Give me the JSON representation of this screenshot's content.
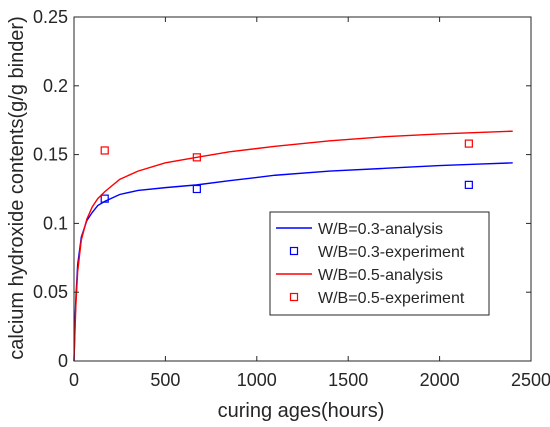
{
  "chart_data": {
    "type": "line",
    "xlabel": "curing ages(hours)",
    "ylabel": "calcium hydroxide contents(g/g binder)",
    "xlim": [
      0,
      2500
    ],
    "ylim": [
      0,
      0.25
    ],
    "xticks": [
      0,
      500,
      1000,
      1500,
      2000,
      2500
    ],
    "yticks": [
      0,
      0.05,
      0.1,
      0.15,
      0.2,
      0.25
    ],
    "xtick_labels": [
      "0",
      "500",
      "1000",
      "1500",
      "2000",
      "2500"
    ],
    "ytick_labels": [
      "0",
      "0.05",
      "0.1",
      "0.15",
      "0.2",
      "0.25"
    ],
    "grid": false,
    "legend_position": "lower-right",
    "series": [
      {
        "name": "W/B=0.3-analysis",
        "kind": "line",
        "color": "#0000ff",
        "x": [
          0,
          5,
          10,
          20,
          40,
          70,
          100,
          130,
          168,
          250,
          350,
          500,
          672,
          850,
          1100,
          1400,
          1700,
          2000,
          2200,
          2400
        ],
        "y": [
          0,
          0.025,
          0.045,
          0.07,
          0.09,
          0.102,
          0.108,
          0.113,
          0.116,
          0.121,
          0.124,
          0.126,
          0.128,
          0.131,
          0.135,
          0.138,
          0.14,
          0.142,
          0.143,
          0.144
        ]
      },
      {
        "name": "W/B=0.3-experiment",
        "kind": "marker",
        "color": "#0000ff",
        "x": [
          168,
          672,
          2160
        ],
        "y": [
          0.118,
          0.125,
          0.128
        ]
      },
      {
        "name": "W/B=0.5-analysis",
        "kind": "line",
        "color": "#ff0000",
        "x": [
          0,
          5,
          10,
          20,
          40,
          70,
          100,
          130,
          168,
          250,
          350,
          500,
          672,
          850,
          1100,
          1400,
          1700,
          2000,
          2200,
          2400
        ],
        "y": [
          0,
          0.02,
          0.04,
          0.065,
          0.088,
          0.103,
          0.112,
          0.118,
          0.123,
          0.132,
          0.138,
          0.144,
          0.148,
          0.152,
          0.156,
          0.16,
          0.163,
          0.165,
          0.166,
          0.167
        ]
      },
      {
        "name": "W/B=0.5-experiment",
        "kind": "marker",
        "color": "#ff0000",
        "x": [
          168,
          672,
          2160
        ],
        "y": [
          0.153,
          0.148,
          0.158
        ]
      }
    ]
  }
}
